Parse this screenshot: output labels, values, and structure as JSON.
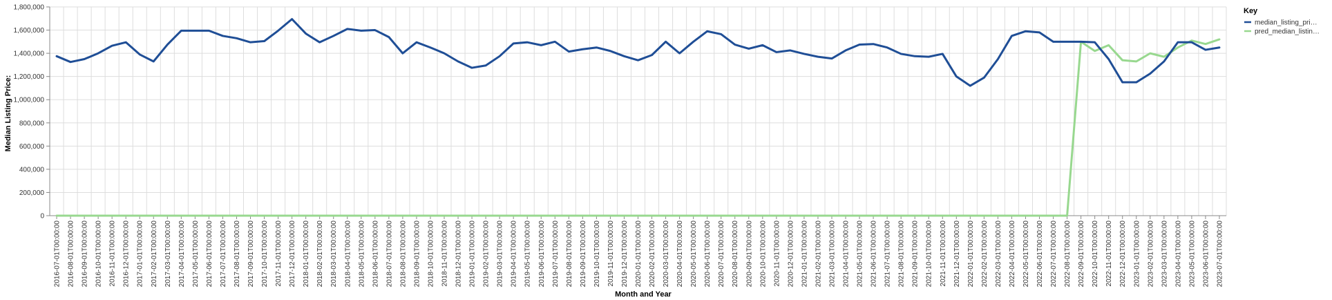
{
  "chart_data": {
    "type": "line",
    "xlabel": "Month and Year",
    "ylabel": "Median Listing Price:",
    "ylim": [
      0,
      1800000
    ],
    "y_ticks": [
      "0",
      "200,000",
      "400,000",
      "600,000",
      "800,000",
      "1,000,000",
      "1,200,000",
      "1,400,000",
      "1,600,000",
      "1,800,000"
    ],
    "grid": true,
    "legend": {
      "title": "Key",
      "placement": "right"
    },
    "x": [
      "2016-07-01T00:00:00",
      "2016-08-01T00:00:00",
      "2016-09-01T00:00:00",
      "2016-10-01T00:00:00",
      "2016-11-01T00:00:00",
      "2016-12-01T00:00:00",
      "2017-01-01T00:00:00",
      "2017-02-01T00:00:00",
      "2017-03-01T00:00:00",
      "2017-04-01T00:00:00",
      "2017-05-01T00:00:00",
      "2017-06-01T00:00:00",
      "2017-07-01T00:00:00",
      "2017-08-01T00:00:00",
      "2017-09-01T00:00:00",
      "2017-10-01T00:00:00",
      "2017-11-01T00:00:00",
      "2017-12-01T00:00:00",
      "2018-01-01T00:00:00",
      "2018-02-01T00:00:00",
      "2018-03-01T00:00:00",
      "2018-04-01T00:00:00",
      "2018-05-01T00:00:00",
      "2018-06-01T00:00:00",
      "2018-07-01T00:00:00",
      "2018-08-01T00:00:00",
      "2018-09-01T00:00:00",
      "2018-10-01T00:00:00",
      "2018-11-01T00:00:00",
      "2018-12-01T00:00:00",
      "2019-01-01T00:00:00",
      "2019-02-01T00:00:00",
      "2019-03-01T00:00:00",
      "2019-04-01T00:00:00",
      "2019-05-01T00:00:00",
      "2019-06-01T00:00:00",
      "2019-07-01T00:00:00",
      "2019-08-01T00:00:00",
      "2019-09-01T00:00:00",
      "2019-10-01T00:00:00",
      "2019-11-01T00:00:00",
      "2019-12-01T00:00:00",
      "2020-01-01T00:00:00",
      "2020-02-01T00:00:00",
      "2020-03-01T00:00:00",
      "2020-04-01T00:00:00",
      "2020-05-01T00:00:00",
      "2020-06-01T00:00:00",
      "2020-07-01T00:00:00",
      "2020-08-01T00:00:00",
      "2020-09-01T00:00:00",
      "2020-10-01T00:00:00",
      "2020-11-01T00:00:00",
      "2020-12-01T00:00:00",
      "2021-01-01T00:00:00",
      "2021-02-01T00:00:00",
      "2021-03-01T00:00:00",
      "2021-04-01T00:00:00",
      "2021-05-01T00:00:00",
      "2021-06-01T00:00:00",
      "2021-07-01T00:00:00",
      "2021-08-01T00:00:00",
      "2021-09-01T00:00:00",
      "2021-10-01T00:00:00",
      "2021-11-01T00:00:00",
      "2021-12-01T00:00:00",
      "2022-01-01T00:00:00",
      "2022-02-01T00:00:00",
      "2022-03-01T00:00:00",
      "2022-04-01T00:00:00",
      "2022-05-01T00:00:00",
      "2022-06-01T00:00:00",
      "2022-07-01T00:00:00",
      "2022-08-01T00:00:00",
      "2022-09-01T00:00:00",
      "2022-10-01T00:00:00",
      "2022-11-01T00:00:00",
      "2022-12-01T00:00:00",
      "2023-01-01T00:00:00",
      "2023-02-01T00:00:00",
      "2023-03-01T00:00:00",
      "2023-04-01T00:00:00",
      "2023-05-01T00:00:00",
      "2023-06-01T00:00:00",
      "2023-07-01T00:00:00"
    ],
    "series": [
      {
        "name": "median_listing_pri…",
        "color": "#1f4e96",
        "values": [
          1375000,
          1325000,
          1350000,
          1400000,
          1465000,
          1495000,
          1390000,
          1330000,
          1475000,
          1595000,
          1595000,
          1595000,
          1550000,
          1530000,
          1495000,
          1505000,
          1595000,
          1695000,
          1570000,
          1495000,
          1550000,
          1610000,
          1595000,
          1600000,
          1540000,
          1400000,
          1495000,
          1450000,
          1400000,
          1330000,
          1275000,
          1295000,
          1375000,
          1485000,
          1495000,
          1470000,
          1500000,
          1415000,
          1435000,
          1450000,
          1420000,
          1375000,
          1340000,
          1385000,
          1500000,
          1400000,
          1500000,
          1590000,
          1565000,
          1475000,
          1440000,
          1470000,
          1410000,
          1425000,
          1395000,
          1370000,
          1355000,
          1425000,
          1475000,
          1480000,
          1450000,
          1395000,
          1375000,
          1370000,
          1395000,
          1200000,
          1120000,
          1190000,
          1350000,
          1550000,
          1590000,
          1580000,
          1500000,
          1500000,
          1500000,
          1495000,
          1350000,
          1150000,
          1150000,
          1225000,
          1330000,
          1495000,
          1495000,
          1430000,
          1450000
        ]
      },
      {
        "name": "pred_median_listin…",
        "color": "#98d88f",
        "values": [
          0,
          0,
          0,
          0,
          0,
          0,
          0,
          0,
          0,
          0,
          0,
          0,
          0,
          0,
          0,
          0,
          0,
          0,
          0,
          0,
          0,
          0,
          0,
          0,
          0,
          0,
          0,
          0,
          0,
          0,
          0,
          0,
          0,
          0,
          0,
          0,
          0,
          0,
          0,
          0,
          0,
          0,
          0,
          0,
          0,
          0,
          0,
          0,
          0,
          0,
          0,
          0,
          0,
          0,
          0,
          0,
          0,
          0,
          0,
          0,
          0,
          0,
          0,
          0,
          0,
          0,
          0,
          0,
          0,
          0,
          0,
          0,
          0,
          0,
          1500000,
          1420000,
          1470000,
          1340000,
          1330000,
          1400000,
          1370000,
          1450000,
          1510000,
          1480000,
          1520000
        ]
      }
    ]
  }
}
